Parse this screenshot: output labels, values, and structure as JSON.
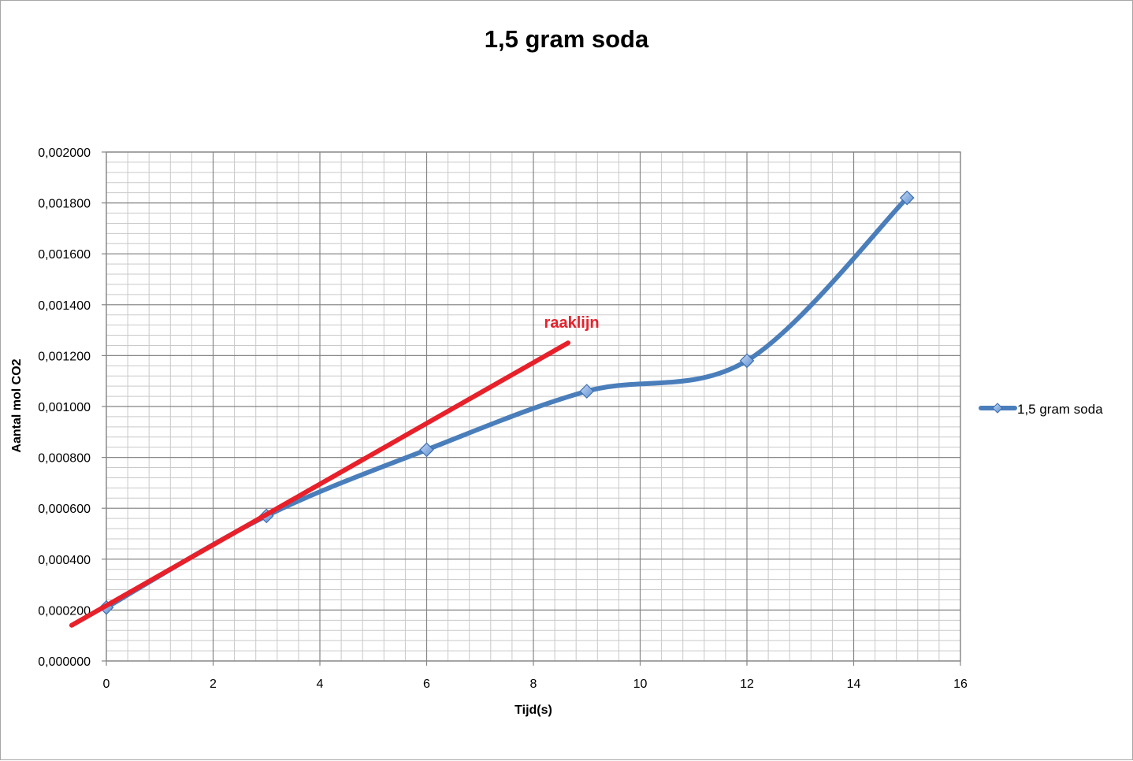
{
  "chart_data": {
    "type": "line",
    "title": "1,5 gram soda",
    "xlabel": "Tijd(s)",
    "ylabel": "Aantal mol CO2",
    "xlim": [
      0,
      16
    ],
    "ylim": [
      0,
      0.002
    ],
    "x_ticks": [
      "0",
      "2",
      "4",
      "6",
      "8",
      "10",
      "12",
      "14",
      "16"
    ],
    "y_ticks": [
      "0,000000",
      "0,000200",
      "0,000400",
      "0,000600",
      "0,000800",
      "0,001000",
      "0,001200",
      "0,001400",
      "0,001600",
      "0,001800",
      "0,002000"
    ],
    "grid": true,
    "legend_position": "right",
    "series": [
      {
        "name": "1,5 gram soda",
        "color": "#4a7ebb",
        "marker": "diamond",
        "smooth": true,
        "points": [
          {
            "x": 0,
            "y": 0.00021
          },
          {
            "x": 3,
            "y": 0.00057
          },
          {
            "x": 6,
            "y": 0.00083
          },
          {
            "x": 9,
            "y": 0.00106
          },
          {
            "x": 12,
            "y": 0.00118
          },
          {
            "x": 15,
            "y": 0.00182
          }
        ]
      }
    ],
    "annotations": [
      {
        "text": "raaklijn",
        "color": "#e8202a",
        "line_start": {
          "x": -0.65,
          "y": 0.00014
        },
        "line_end": {
          "x": 8.65,
          "y": 0.00125
        },
        "label_at": {
          "x": 8.2,
          "y": 0.00131
        }
      }
    ]
  }
}
